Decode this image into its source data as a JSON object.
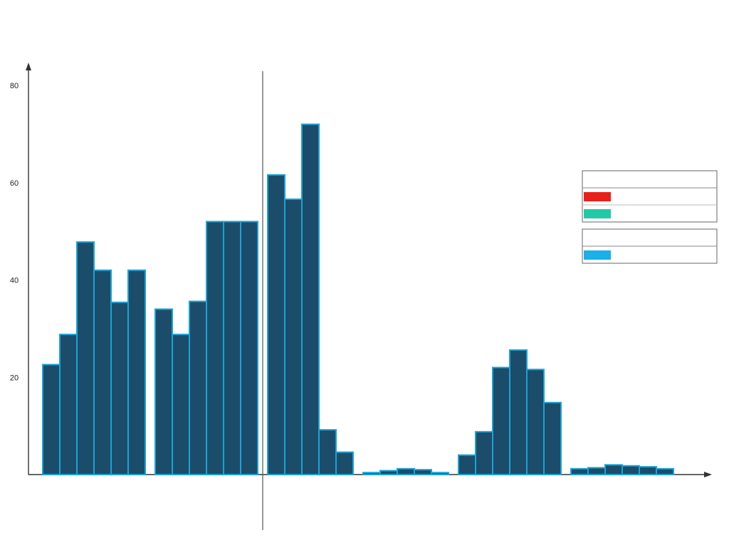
{
  "chart_data": {
    "type": "bar",
    "title": "",
    "subtitle": "",
    "xlabel": "",
    "ylabel": "",
    "ylim": [
      0,
      80
    ],
    "yticks": [
      20,
      40,
      60,
      80
    ],
    "grid": false,
    "bar_color": "#1b4d6a",
    "bar_edge_color": "#1aa3d6",
    "panels": [
      {
        "title": "",
        "groups": [
          0,
          1
        ]
      },
      {
        "title": "",
        "groups": [
          2,
          3,
          4,
          5
        ]
      }
    ],
    "groups": [
      {
        "label": "",
        "sublabel": "",
        "values": [
          22.6,
          28.8,
          47.8,
          42.0,
          35.4,
          42.0
        ]
      },
      {
        "label": "",
        "sublabel": "",
        "values": [
          34.0,
          28.8,
          35.6,
          52.0,
          52.0,
          52.0
        ]
      },
      {
        "label": "",
        "sublabel": "",
        "values": [
          61.6,
          56.6,
          72.0,
          9.2,
          4.6
        ]
      },
      {
        "label": "",
        "sublabel": "",
        "values": [
          0.4,
          0.8,
          1.2,
          1.0,
          0.4
        ]
      },
      {
        "label": "",
        "sublabel": "",
        "values": [
          4.0,
          8.8,
          22.0,
          25.6,
          21.6,
          14.8
        ]
      },
      {
        "label": "",
        "sublabel": "",
        "values": [
          1.2,
          1.4,
          2.0,
          1.8,
          1.6,
          1.2
        ]
      }
    ],
    "legend": {
      "placement": "right",
      "sections": [
        {
          "title": "",
          "items": [
            {
              "label": "",
              "color": "#e8201a"
            },
            {
              "label": "",
              "color": "#22c9a8"
            }
          ]
        },
        {
          "title": "",
          "items": [
            {
              "label": "",
              "color": "#1ab0e8"
            }
          ]
        }
      ]
    }
  }
}
